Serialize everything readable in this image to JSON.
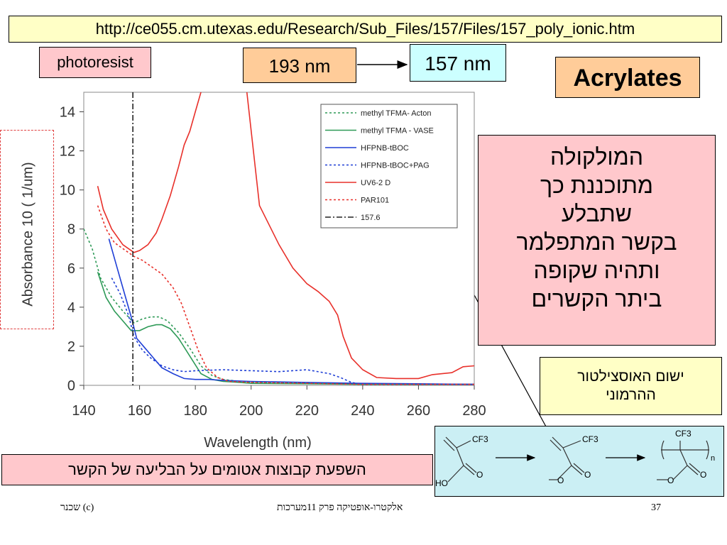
{
  "header": {
    "url": "http://ce055.cm.utexas.edu/Research/Sub_Files/157/Files/157_poly_ionic.htm",
    "photoresist": "photoresist",
    "wl_193": "193 nm",
    "wl_157": "157 nm",
    "acrylates": "Acrylates"
  },
  "hebrew_text": [
    "המולקולה",
    "מתוכננת כך",
    "שתבלע",
    "בקשר המתפלמר",
    "ותהיה שקופה",
    "ביתר הקשרים"
  ],
  "oscillator_text": [
    "ישום האוסצילטור",
    "ההרמוני"
  ],
  "effect_text": "השפעת קבוצות אטומים על הבליעה של הקשר",
  "footer": {
    "left": "שכנר (c)",
    "center": "אלקטרו-אופטיקה פרק 11מערכות",
    "page": "37"
  },
  "chemistry": {
    "cf3": "CF3",
    "ho": "HO",
    "n": "n"
  },
  "colors": {
    "red": "#e8302a",
    "green": "#2e9a57",
    "blue": "#1f3fd6",
    "dashdot": "#222222"
  },
  "chart_data": {
    "type": "line",
    "xlabel": "Wavelength (nm)",
    "ylabel": "Absorbance 10 ( 1/um)",
    "xlim": [
      140,
      280
    ],
    "ylim": [
      0,
      15
    ],
    "xticks": [
      140,
      160,
      180,
      200,
      220,
      240,
      260,
      280
    ],
    "yticks": [
      0,
      2,
      4,
      6,
      8,
      10,
      12,
      14
    ],
    "legend_position": "top-right",
    "series": [
      {
        "name": "methyl TFMA- Acton",
        "color": "#2e9a57",
        "style": "dotted",
        "x": [
          140,
          143,
          146,
          150,
          154,
          158,
          161,
          164,
          167,
          170,
          174,
          178,
          182,
          186,
          190,
          196,
          200,
          220,
          240,
          260,
          280
        ],
        "y": [
          8.0,
          7.0,
          5.5,
          4.5,
          3.8,
          3.2,
          3.4,
          3.5,
          3.5,
          3.3,
          2.7,
          1.9,
          1.0,
          0.5,
          0.3,
          0.2,
          0.15,
          0.1,
          0.08,
          0.05,
          0.05
        ]
      },
      {
        "name": "methyl TFMA - VASE",
        "color": "#2e9a57",
        "style": "solid",
        "x": [
          145,
          148,
          151,
          154,
          157,
          160,
          163,
          166,
          168,
          171,
          174,
          178,
          182,
          186,
          190,
          196,
          200,
          220,
          240,
          260,
          280
        ],
        "y": [
          5.8,
          4.5,
          3.8,
          3.3,
          2.8,
          2.8,
          3.0,
          3.1,
          3.1,
          2.9,
          2.4,
          1.5,
          0.6,
          0.3,
          0.2,
          0.15,
          0.1,
          0.08,
          0.05,
          0.05,
          0.05
        ]
      },
      {
        "name": "HFPNB-tBOC",
        "color": "#1f3fd6",
        "style": "solid",
        "x": [
          149,
          152,
          155,
          157,
          159,
          162,
          165,
          168,
          172,
          176,
          180,
          185,
          190,
          200,
          220,
          240,
          260,
          280
        ],
        "y": [
          7.5,
          6.0,
          4.5,
          3.5,
          2.4,
          1.9,
          1.4,
          0.9,
          0.6,
          0.35,
          0.3,
          0.3,
          0.25,
          0.2,
          0.15,
          0.1,
          0.08,
          0.05
        ]
      },
      {
        "name": "HFPNB-tBOC+PAG",
        "color": "#1f3fd6",
        "style": "dotted",
        "x": [
          150,
          153,
          156,
          158,
          161,
          164,
          168,
          172,
          176,
          180,
          190,
          200,
          210,
          220,
          228,
          232,
          236,
          240,
          260,
          280
        ],
        "y": [
          5.5,
          4.7,
          3.6,
          2.5,
          1.8,
          1.4,
          1.0,
          0.8,
          0.7,
          0.75,
          0.8,
          0.75,
          0.7,
          0.8,
          0.6,
          0.4,
          0.15,
          0.05,
          0.05,
          0.05
        ]
      },
      {
        "name": "UV6-2 D",
        "color": "#e8302a",
        "style": "solid",
        "x": [
          145,
          147,
          150,
          154,
          158,
          160,
          163,
          166,
          168,
          171,
          174,
          176,
          178,
          180,
          182,
          184,
          185,
          192,
          198,
          203,
          210,
          215,
          220,
          224,
          228,
          231,
          233,
          236,
          240,
          245,
          252,
          260,
          265,
          272,
          276,
          280
        ],
        "y": [
          10.2,
          9.0,
          8.0,
          7.2,
          6.8,
          6.9,
          7.2,
          7.8,
          8.5,
          9.7,
          11.2,
          12.3,
          13.0,
          14.0,
          15.0,
          15.5,
          15.7,
          15.8,
          15.6,
          9.2,
          7.2,
          6.0,
          5.2,
          4.8,
          4.3,
          3.6,
          2.5,
          1.4,
          0.8,
          0.4,
          0.35,
          0.35,
          0.55,
          0.65,
          0.95,
          1.0
        ]
      },
      {
        "name": "PAR101",
        "color": "#e8302a",
        "style": "dotted",
        "x": [
          145,
          148,
          151,
          154,
          158,
          161,
          164,
          168,
          172,
          175,
          178,
          181,
          184,
          188,
          192,
          200,
          220,
          240,
          260,
          280
        ],
        "y": [
          9.2,
          8.0,
          7.3,
          7.0,
          6.6,
          6.4,
          6.1,
          5.7,
          5.0,
          4.2,
          3.0,
          1.8,
          0.9,
          0.4,
          0.2,
          0.15,
          0.1,
          0.05,
          0.05,
          0.05
        ]
      }
    ],
    "vline": {
      "name": "157.6",
      "x": 157.6,
      "color": "#222222",
      "style": "dash-dot"
    }
  }
}
